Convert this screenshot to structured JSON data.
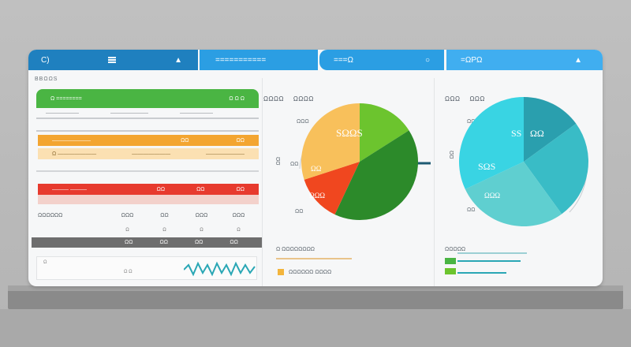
{
  "colors": {
    "header_dark": "#1f80bf",
    "header_mid": "#2b9ee3",
    "header_light": "#40aef0",
    "green": "#4ab543",
    "orange": "#f3a531",
    "red": "#e73a2e",
    "teal": "#2bb5c0"
  },
  "header": {
    "seg1_label": "C)",
    "seg2_label": "===========",
    "seg3_label": "===Ω",
    "seg4_label": "=ΩPΩ"
  },
  "page_label": "BBΩΩS",
  "left_panel": {
    "green_title": "Ω ========",
    "green_right": "Ω Ω Ω",
    "green_sub": [
      "———————",
      "————————",
      "———————"
    ],
    "orange_label": "———————",
    "orange_values": [
      "ΩΩ",
      "ΩΩ"
    ],
    "orange_sub": [
      "Ω ———————",
      "———————",
      "———————"
    ],
    "red_label": "——— ———",
    "red_values": [
      "ΩΩ",
      "ΩΩ",
      "ΩΩ"
    ],
    "stats_label": "ΩΩΩΩΩΩ",
    "stats_values": [
      "ΩΩΩ",
      "ΩΩ",
      "ΩΩΩ",
      "ΩΩΩ"
    ],
    "stats_sub": [
      "Ω",
      "Ω",
      "Ω",
      "Ω"
    ],
    "gray_values": [
      "ΩΩ",
      "ΩΩ",
      "ΩΩ",
      "ΩΩ"
    ],
    "wave_labels": [
      "Ω",
      "Ω Ω"
    ]
  },
  "middle_panel": {
    "tabs": [
      "ΩΩΩΩ",
      "ΩΩΩΩ"
    ],
    "side_labels": [
      "ΩΩΩ",
      "ΩΩ",
      "ΩΩ",
      "ΩΩ"
    ],
    "pie_labels": [
      "SΩΩS",
      "ΩΩ",
      "ΩΩΩ"
    ],
    "legend": [
      {
        "label": "Ω ΩΩΩΩΩΩΩΩ",
        "color": "#e9c48a"
      },
      {
        "label": "ΩΩΩΩΩΩ ΩΩΩΩ",
        "color": "#f3b53c"
      }
    ]
  },
  "right_panel": {
    "tabs": [
      "ΩΩΩ",
      "ΩΩΩ"
    ],
    "side_labels": [
      "ΩΩΩ",
      "ΩΩ",
      "ΩΩ"
    ],
    "pie_labels": [
      "SS",
      "ΩΩ",
      "SΩS",
      "ΩΩΩ"
    ],
    "legend": [
      {
        "label": "ΩΩΩΩΩ",
        "color": "#4ab543"
      }
    ]
  },
  "chart_data": [
    {
      "type": "pie",
      "categories": [
        "green",
        "dark-green",
        "red",
        "yellow"
      ],
      "values": [
        16,
        41,
        13,
        30
      ],
      "colors": [
        "#6cc42e",
        "#2c8a2a",
        "#f0471f",
        "#f8c05b"
      ]
    },
    {
      "type": "pie",
      "categories": [
        "teal-dark",
        "teal-mid",
        "teal-light",
        "cyan"
      ],
      "values": [
        15,
        25,
        28,
        32
      ],
      "colors": [
        "#2a9fae",
        "#39bcc6",
        "#5fcfd0",
        "#39d4e3"
      ]
    }
  ]
}
